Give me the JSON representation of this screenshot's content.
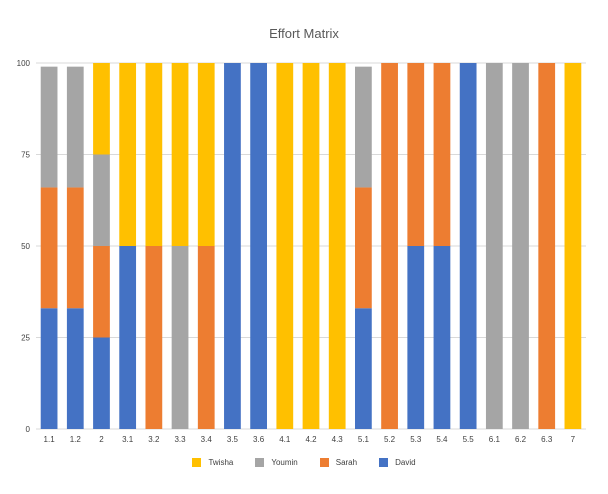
{
  "chart_data": {
    "type": "bar",
    "stacked": true,
    "title": "Effort Matrix",
    "xlabel": "",
    "ylabel": "",
    "ylim": [
      0,
      100
    ],
    "yticks": [
      0,
      25,
      50,
      75,
      100
    ],
    "grid": true,
    "legend_position": "bottom",
    "categories": [
      "1.1",
      "1.2",
      "2",
      "3.1",
      "3.2",
      "3.3",
      "3.4",
      "3.5",
      "3.6",
      "4.1",
      "4.2",
      "4.3",
      "5.1",
      "5.2",
      "5.3",
      "5.4",
      "5.5",
      "6.1",
      "6.2",
      "6.3",
      "7"
    ],
    "series": [
      {
        "name": "David",
        "color": "#4472C4",
        "values": [
          33,
          33,
          25,
          50,
          0,
          0,
          0,
          100,
          100,
          0,
          0,
          0,
          33,
          0,
          50,
          50,
          100,
          0,
          0,
          0,
          0
        ]
      },
      {
        "name": "Sarah",
        "color": "#ED7D31",
        "values": [
          33,
          33,
          25,
          0,
          50,
          0,
          50,
          0,
          0,
          0,
          0,
          0,
          33,
          100,
          50,
          50,
          0,
          0,
          0,
          100,
          0
        ]
      },
      {
        "name": "Youmin",
        "color": "#A5A5A5",
        "values": [
          33,
          33,
          25,
          0,
          0,
          50,
          0,
          0,
          0,
          0,
          0,
          0,
          33,
          0,
          0,
          0,
          0,
          100,
          100,
          0,
          0
        ]
      },
      {
        "name": "Twisha",
        "color": "#FFC000",
        "values": [
          0,
          0,
          25,
          50,
          50,
          50,
          50,
          0,
          0,
          100,
          100,
          100,
          0,
          0,
          0,
          0,
          0,
          0,
          0,
          0,
          100
        ]
      }
    ],
    "legend_order": [
      "Twisha",
      "Youmin",
      "Sarah",
      "David"
    ]
  }
}
